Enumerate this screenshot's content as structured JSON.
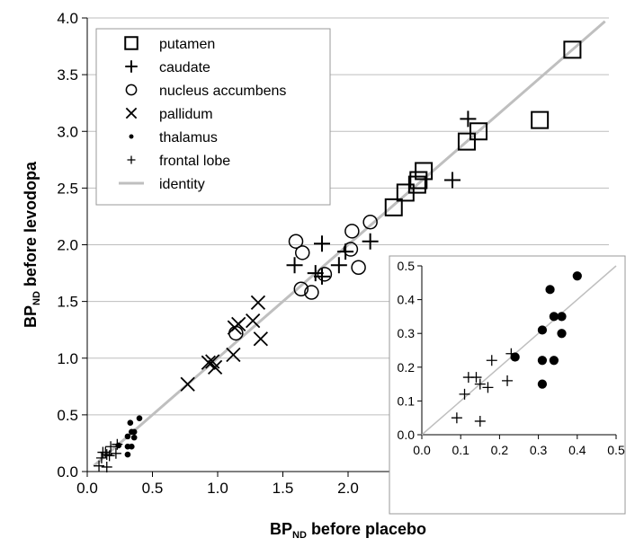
{
  "colors": {
    "identity": "#bfbfbf",
    "grid": "#bdbdbd",
    "markers": "#000000"
  },
  "chart_data": [
    {
      "type": "scatter",
      "panel": "main",
      "xlabel_main": "BP",
      "xlabel_sub": "ND",
      "xlabel_rest": " before placebo",
      "ylabel_main": "BP",
      "ylabel_sub": "ND",
      "ylabel_rest": " before levodopa",
      "xlim": [
        0,
        4
      ],
      "ylim": [
        0,
        4
      ],
      "x_ticks": [
        "0.0",
        "0.5",
        "1.0",
        "1.5",
        "2.0",
        "2.5",
        "3.0",
        "3.5",
        "4.0"
      ],
      "y_ticks": [
        "0.0",
        "0.5",
        "1.0",
        "1.5",
        "2.0",
        "2.5",
        "3.0",
        "3.5",
        "4.0"
      ],
      "grid": "horizontal",
      "legend_position": "top-left",
      "legend": [
        {
          "label": "putamen",
          "marker": "square"
        },
        {
          "label": "caudate",
          "marker": "plus"
        },
        {
          "label": "nucleus accumbens",
          "marker": "circle"
        },
        {
          "label": "pallidum",
          "marker": "cross"
        },
        {
          "label": "thalamus",
          "marker": "dot"
        },
        {
          "label": "frontal lobe",
          "marker": "small-plus"
        },
        {
          "label": "identity",
          "marker": "line"
        }
      ],
      "series": [
        {
          "name": "putamen",
          "marker": "square",
          "points": [
            [
              3.72,
              3.72
            ],
            [
              3.47,
              3.1
            ],
            [
              3.0,
              3.0
            ],
            [
              2.91,
              2.91
            ],
            [
              2.58,
              2.65
            ],
            [
              2.54,
              2.57
            ],
            [
              2.53,
              2.53
            ],
            [
              2.44,
              2.46
            ],
            [
              2.35,
              2.33
            ]
          ]
        },
        {
          "name": "caudate",
          "marker": "plus",
          "points": [
            [
              2.92,
              3.11
            ],
            [
              2.8,
              2.57
            ],
            [
              2.17,
              2.03
            ],
            [
              1.98,
              1.94
            ],
            [
              1.93,
              1.82
            ],
            [
              1.8,
              2.01
            ],
            [
              1.59,
              1.82
            ],
            [
              1.75,
              1.75
            ],
            [
              1.8,
              1.72
            ]
          ]
        },
        {
          "name": "nucleus accumbens",
          "marker": "circle",
          "points": [
            [
              2.17,
              2.2
            ],
            [
              2.03,
              2.12
            ],
            [
              1.6,
              2.03
            ],
            [
              1.65,
              1.93
            ],
            [
              2.02,
              1.96
            ],
            [
              2.08,
              1.8
            ],
            [
              1.82,
              1.74
            ],
            [
              1.64,
              1.61
            ],
            [
              1.72,
              1.58
            ],
            [
              1.14,
              1.22
            ]
          ]
        },
        {
          "name": "pallidum",
          "marker": "cross",
          "points": [
            [
              1.31,
              1.49
            ],
            [
              1.27,
              1.33
            ],
            [
              1.16,
              1.3
            ],
            [
              1.13,
              1.27
            ],
            [
              1.33,
              1.17
            ],
            [
              1.12,
              1.03
            ],
            [
              0.96,
              0.97
            ],
            [
              0.98,
              0.92
            ],
            [
              0.93,
              0.96
            ],
            [
              0.77,
              0.77
            ]
          ]
        },
        {
          "name": "thalamus",
          "marker": "dot",
          "points": [
            [
              0.4,
              0.47
            ],
            [
              0.33,
              0.43
            ],
            [
              0.34,
              0.35
            ],
            [
              0.36,
              0.35
            ],
            [
              0.31,
              0.31
            ],
            [
              0.36,
              0.3
            ],
            [
              0.24,
              0.23
            ],
            [
              0.31,
              0.22
            ],
            [
              0.34,
              0.22
            ],
            [
              0.31,
              0.15
            ]
          ]
        },
        {
          "name": "frontal lobe",
          "marker": "small-plus",
          "points": [
            [
              0.23,
              0.24
            ],
            [
              0.18,
              0.22
            ],
            [
              0.12,
              0.17
            ],
            [
              0.14,
              0.17
            ],
            [
              0.15,
              0.15
            ],
            [
              0.17,
              0.14
            ],
            [
              0.22,
              0.16
            ],
            [
              0.11,
              0.12
            ],
            [
              0.09,
              0.05
            ],
            [
              0.15,
              0.04
            ]
          ]
        }
      ],
      "identity_line": [
        [
          0.05,
          0.05
        ],
        [
          3.97,
          3.97
        ]
      ]
    },
    {
      "type": "scatter",
      "panel": "inset",
      "legend_position": "none",
      "xlim": [
        0,
        0.5
      ],
      "ylim": [
        0,
        0.5
      ],
      "x_ticks": [
        "0.0",
        "0.1",
        "0.2",
        "0.3",
        "0.4",
        "0.5"
      ],
      "y_ticks": [
        "0.0",
        "0.1",
        "0.2",
        "0.3",
        "0.4",
        "0.5"
      ],
      "grid": "none",
      "series": [
        {
          "name": "thalamus",
          "marker": "dot",
          "points": [
            [
              0.4,
              0.47
            ],
            [
              0.33,
              0.43
            ],
            [
              0.34,
              0.35
            ],
            [
              0.36,
              0.35
            ],
            [
              0.31,
              0.31
            ],
            [
              0.36,
              0.3
            ],
            [
              0.24,
              0.23
            ],
            [
              0.31,
              0.22
            ],
            [
              0.34,
              0.22
            ],
            [
              0.31,
              0.15
            ]
          ]
        },
        {
          "name": "frontal lobe",
          "marker": "small-plus",
          "points": [
            [
              0.23,
              0.24
            ],
            [
              0.18,
              0.22
            ],
            [
              0.12,
              0.17
            ],
            [
              0.14,
              0.17
            ],
            [
              0.15,
              0.15
            ],
            [
              0.17,
              0.14
            ],
            [
              0.22,
              0.16
            ],
            [
              0.11,
              0.12
            ],
            [
              0.09,
              0.05
            ],
            [
              0.15,
              0.04
            ]
          ]
        }
      ],
      "identity_line": [
        [
          0,
          0
        ],
        [
          0.5,
          0.5
        ]
      ]
    }
  ]
}
